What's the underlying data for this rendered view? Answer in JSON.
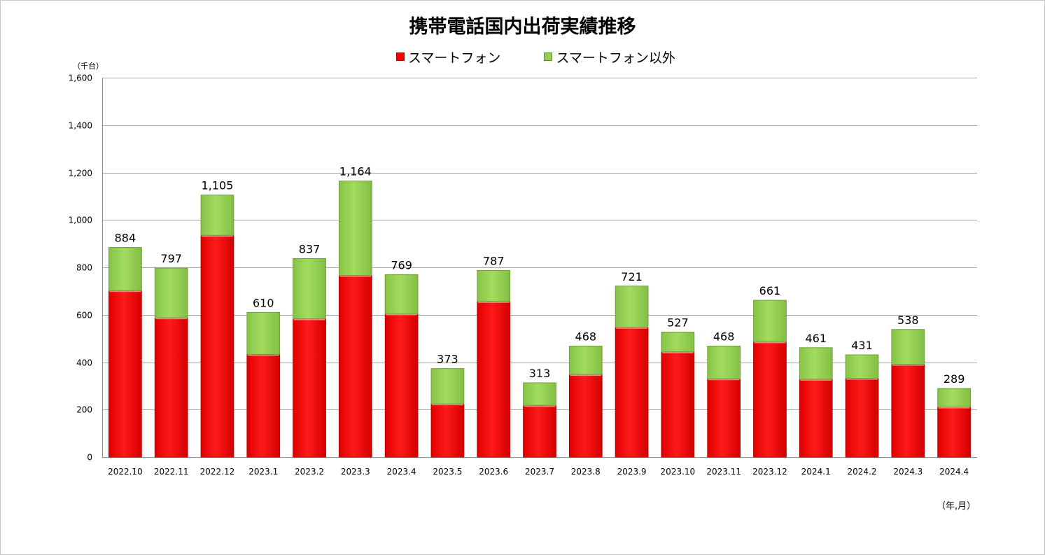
{
  "chart_data": {
    "type": "bar",
    "stacked": true,
    "title": "携帯電話国内出荷実績推移",
    "ylabel": "（千台）",
    "xlabel": "（年,月）",
    "ylim": [
      0,
      1600
    ],
    "yticks": [
      0,
      200,
      400,
      600,
      800,
      1000,
      1200,
      1400,
      1600
    ],
    "ytick_labels": [
      "0",
      "200",
      "400",
      "600",
      "800",
      "1,000",
      "1,200",
      "1,400",
      "1,600"
    ],
    "grid": true,
    "legend_position": "top",
    "categories": [
      "2022.10",
      "2022.11",
      "2022.12",
      "2023.1",
      "2023.2",
      "2023.3",
      "2023.4",
      "2023.5",
      "2023.6",
      "2023.7",
      "2023.8",
      "2023.9",
      "2023.10",
      "2023.11",
      "2023.12",
      "2024.1",
      "2024.2",
      "2024.3",
      "2024.4"
    ],
    "series": [
      {
        "name": "スマートフォン",
        "color": "#ff0000",
        "values": [
          702,
          587,
          935,
          433,
          583,
          766,
          604,
          224,
          656,
          218,
          348,
          547,
          444,
          330,
          486,
          328,
          332,
          391,
          211
        ]
      },
      {
        "name": "スマートフォン以外",
        "color": "#92d050",
        "values": [
          182,
          210,
          170,
          177,
          254,
          398,
          165,
          149,
          131,
          95,
          120,
          174,
          83,
          138,
          175,
          133,
          99,
          147,
          78
        ]
      }
    ],
    "totals": [
      884,
      797,
      1105,
      610,
      837,
      1164,
      769,
      373,
      787,
      313,
      468,
      721,
      527,
      468,
      661,
      461,
      431,
      538,
      289
    ],
    "total_labels": [
      "884",
      "797",
      "1,105",
      "610",
      "837",
      "1,164",
      "769",
      "373",
      "787",
      "313",
      "468",
      "721",
      "527",
      "468",
      "661",
      "461",
      "431",
      "538",
      "289"
    ]
  }
}
